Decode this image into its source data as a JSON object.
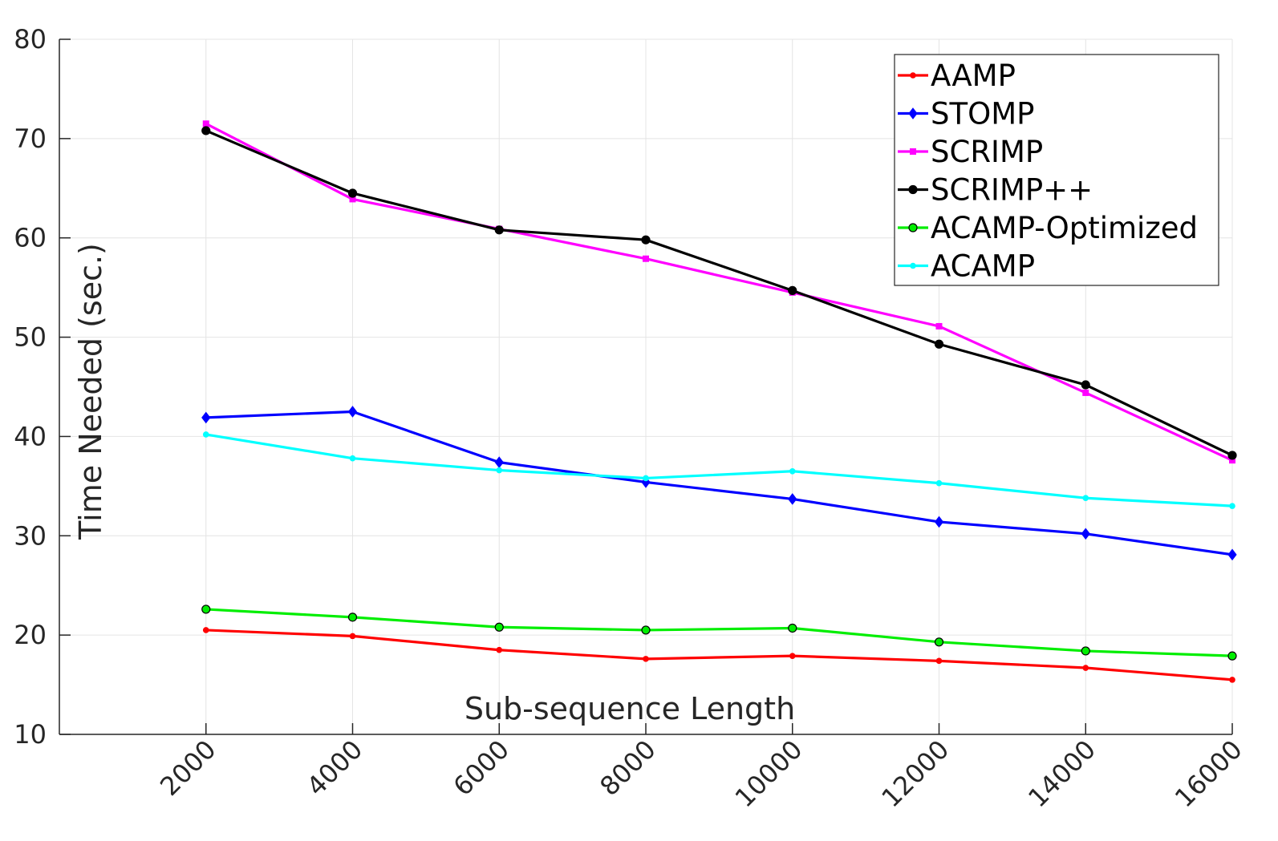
{
  "chart_data": {
    "type": "line",
    "title": "",
    "xlabel": "Sub-sequence Length",
    "ylabel": "Time Needed (sec.)",
    "x": [
      2000,
      4000,
      6000,
      8000,
      10000,
      12000,
      14000,
      16000
    ],
    "xlim": [
      0,
      16000
    ],
    "ylim": [
      10,
      80
    ],
    "xticks": [
      2000,
      4000,
      6000,
      8000,
      10000,
      12000,
      14000,
      16000
    ],
    "yticks": [
      10,
      20,
      30,
      40,
      50,
      60,
      70,
      80
    ],
    "grid": true,
    "legend_position": "top-right",
    "series": [
      {
        "name": "AAMP",
        "color": "#ff0000",
        "marker": "dot",
        "values": [
          20.5,
          19.9,
          18.5,
          17.6,
          17.9,
          17.4,
          16.7,
          15.5
        ]
      },
      {
        "name": "STOMP",
        "color": "#0000ff",
        "marker": "diamond",
        "values": [
          41.9,
          42.5,
          37.4,
          35.4,
          33.7,
          31.4,
          30.2,
          28.1
        ]
      },
      {
        "name": "SCRIMP",
        "color": "#ff00ff",
        "marker": "square",
        "values": [
          71.5,
          63.9,
          60.9,
          57.9,
          54.5,
          51.1,
          44.4,
          37.6
        ]
      },
      {
        "name": "SCRIMP++",
        "color": "#000000",
        "marker": "circle",
        "values": [
          70.8,
          64.5,
          60.8,
          59.8,
          54.7,
          49.3,
          45.2,
          38.1
        ]
      },
      {
        "name": "ACAMP-Optimized",
        "color": "#00ee00",
        "marker": "circle",
        "values": [
          22.6,
          21.8,
          20.8,
          20.5,
          20.7,
          19.3,
          18.4,
          17.9
        ]
      },
      {
        "name": "ACAMP",
        "color": "#00ffff",
        "marker": "dot",
        "values": [
          40.2,
          37.8,
          36.6,
          35.8,
          36.5,
          35.3,
          33.8,
          33.0
        ]
      }
    ]
  }
}
